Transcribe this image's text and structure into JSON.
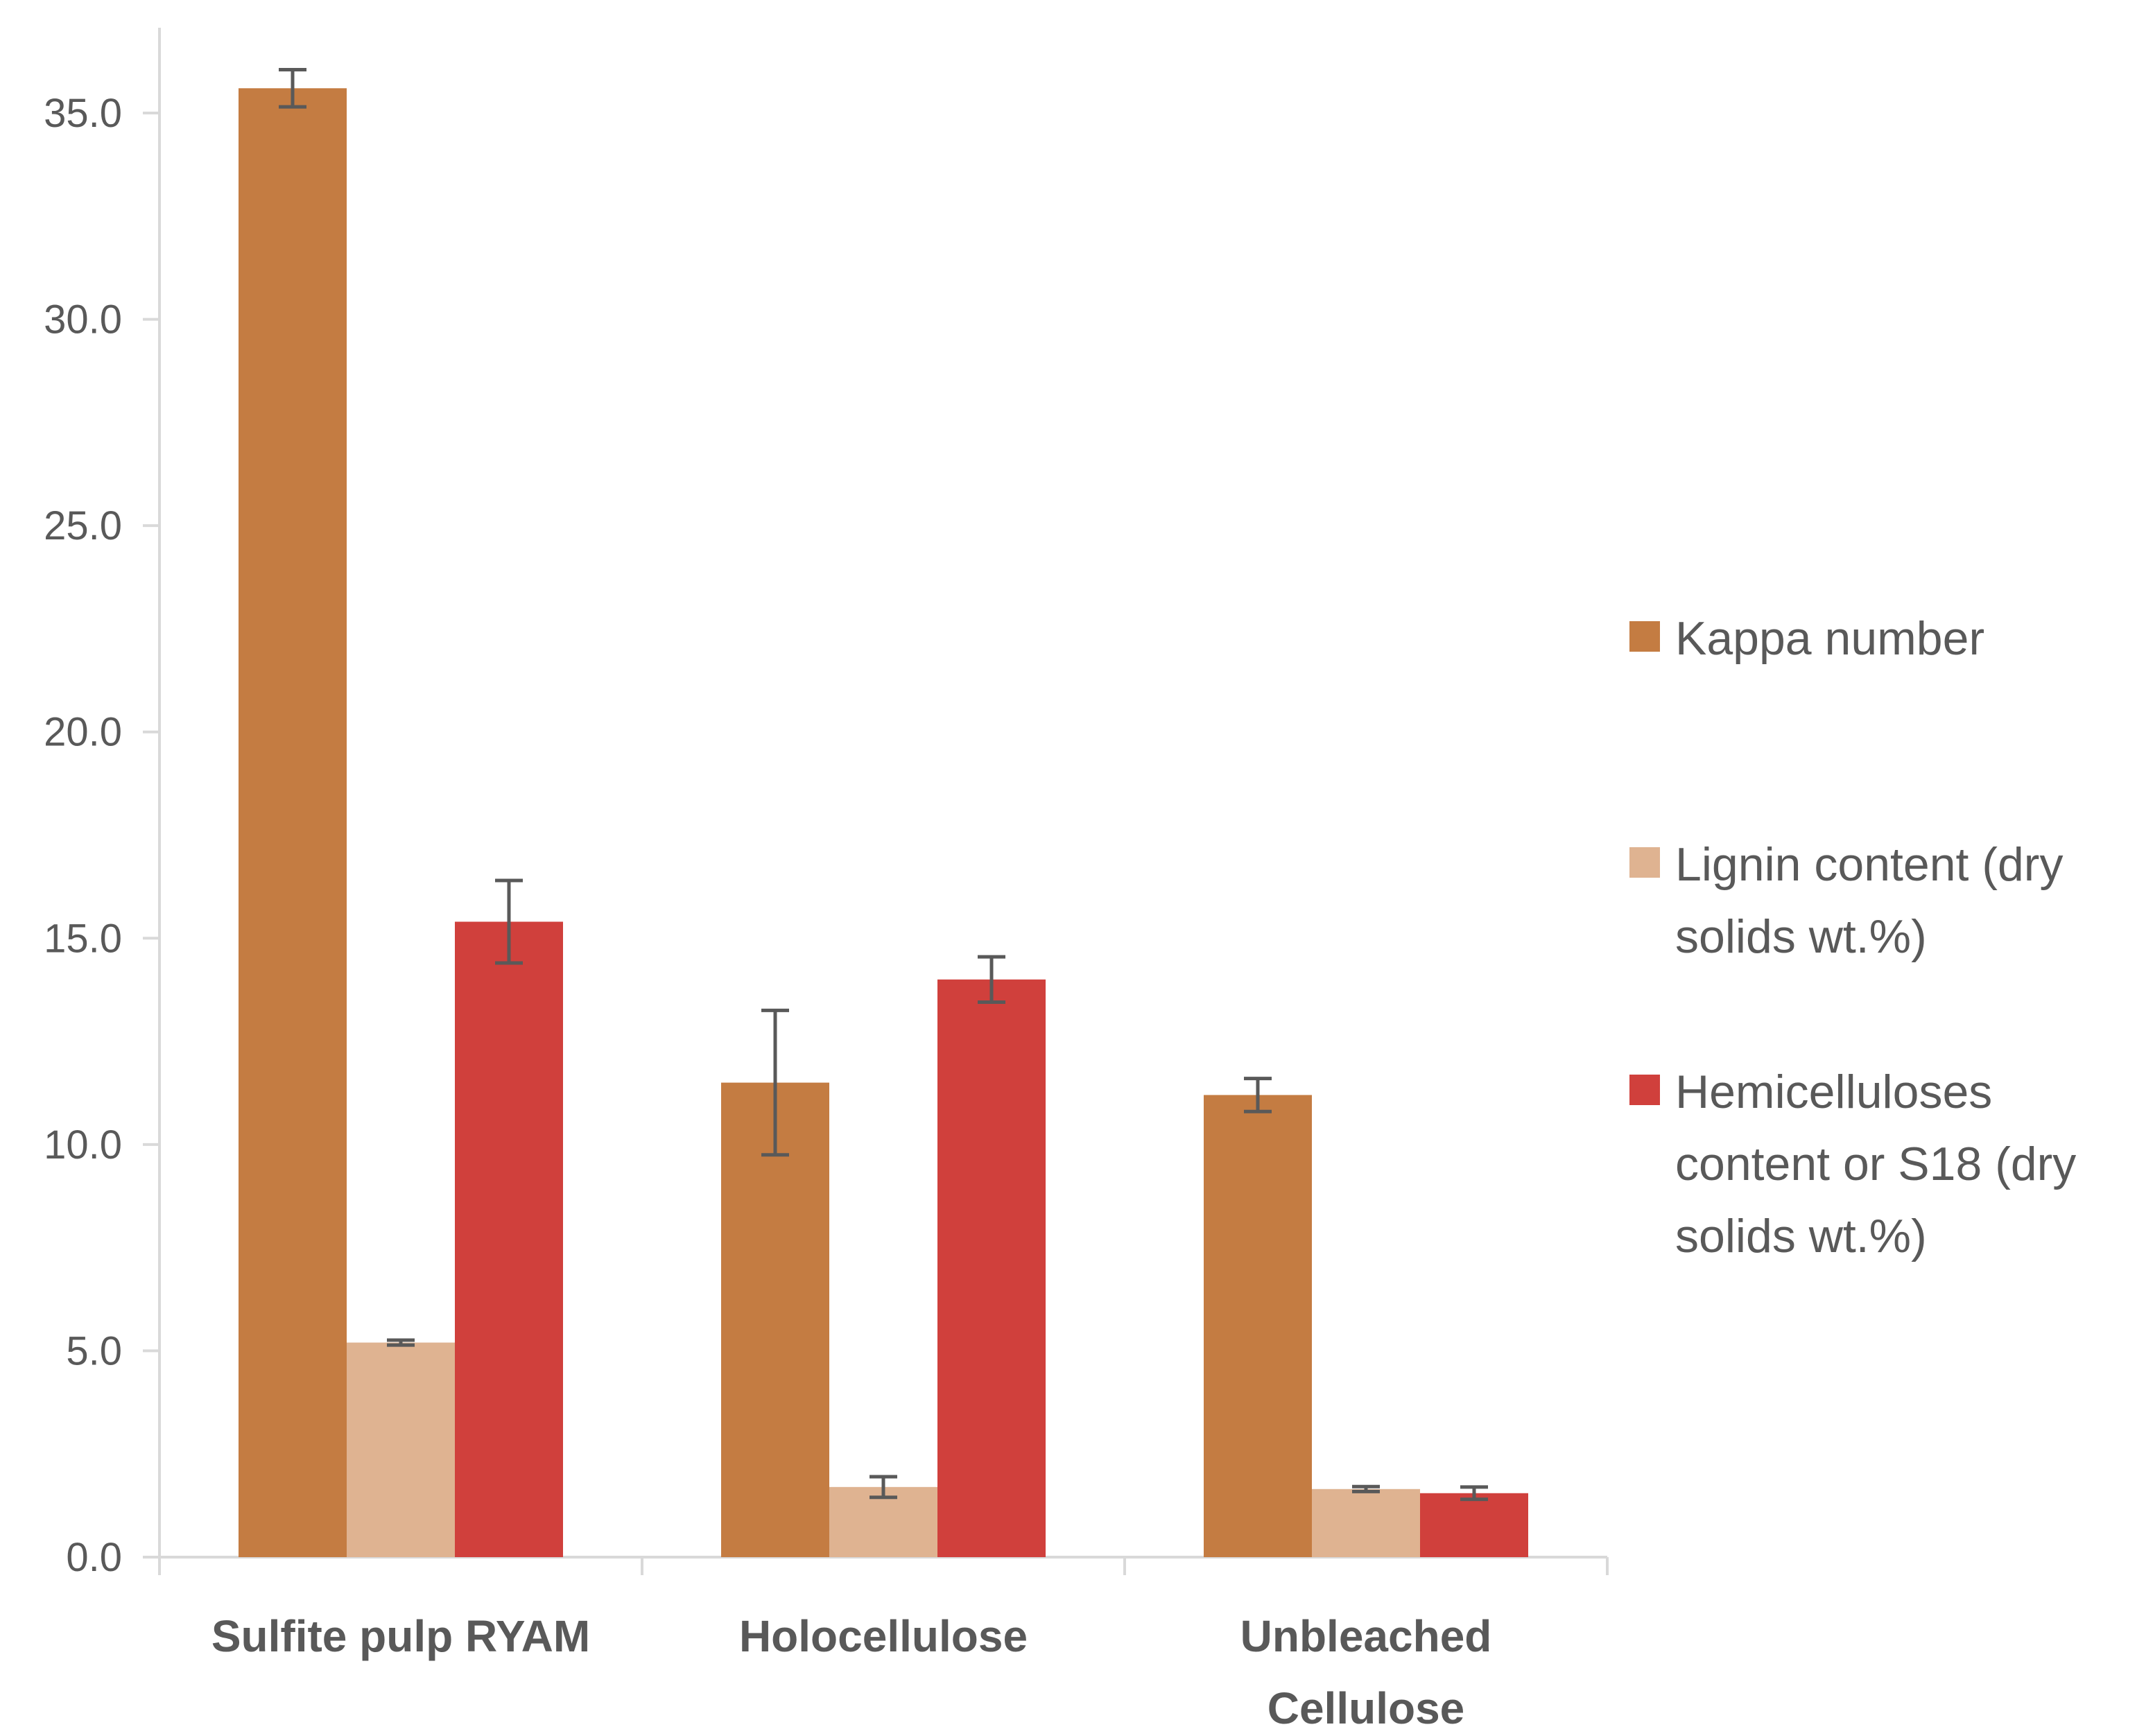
{
  "chart_data": {
    "type": "bar",
    "title": "",
    "xlabel": "",
    "ylabel": "",
    "ylim": [
      0,
      37
    ],
    "yticks": [
      "0.0",
      "5.0",
      "10.0",
      "15.0",
      "20.0",
      "25.0",
      "30.0",
      "35.0"
    ],
    "ytick_values": [
      0,
      5,
      10,
      15,
      20,
      25,
      30,
      35
    ],
    "categories": [
      [
        "Sulfite pulp RYAM"
      ],
      [
        "Holocellulose"
      ],
      [
        "Unbleached",
        "Cellulose"
      ]
    ],
    "series": [
      {
        "name": "Kappa number",
        "legend_lines": [
          "Kappa number"
        ],
        "color": "#C47C42",
        "values": [
          35.6,
          11.5,
          11.2
        ],
        "errors": [
          0.45,
          1.75,
          0.4
        ]
      },
      {
        "name": "Lignin content (dry solids wt.%)",
        "legend_lines": [
          "Lignin content (dry",
          "solids wt.%)"
        ],
        "color": "#DFB391",
        "values": [
          5.2,
          1.7,
          1.65
        ],
        "errors": [
          0.06,
          0.25,
          0.06
        ]
      },
      {
        "name": "Hemicelluloses content or S18 (dry solids wt.%)",
        "legend_lines": [
          "Hemicelluloses",
          "content or S18 (dry",
          "solids wt.%)"
        ],
        "color": "#D0403C",
        "values": [
          15.4,
          14.0,
          1.55
        ],
        "errors": [
          1.0,
          0.55,
          0.15
        ]
      }
    ],
    "grid": false,
    "legend_position": "right"
  }
}
